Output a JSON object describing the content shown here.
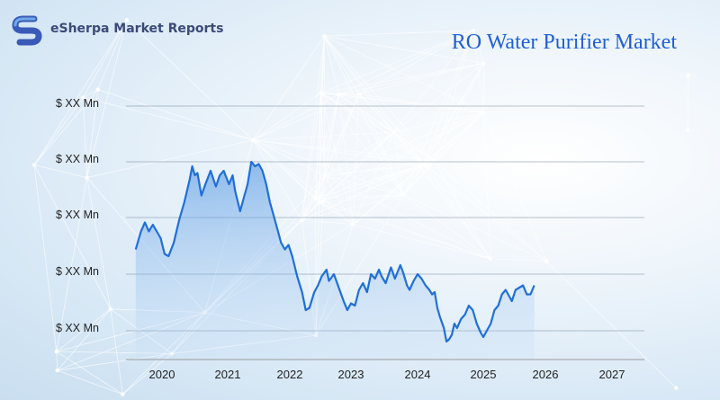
{
  "brand": {
    "name": "eSherpa Market Reports",
    "logo_icon": "esherpa-s-logo-icon",
    "logo_color": "#3a5ab9"
  },
  "chart_data": {
    "type": "area",
    "title": "RO Water Purifier Market",
    "xlabel": "",
    "ylabel": "",
    "y_tick_labels": [
      "$ XX Mn",
      "$ XX Mn",
      "$ XX Mn",
      "$ XX Mn",
      "$ XX Mn"
    ],
    "x_tick_labels": [
      "2020",
      "2021",
      "2022",
      "2023",
      "2024",
      "2025",
      "2026",
      "2027"
    ],
    "xlim": [
      2019.6,
      2027.5
    ],
    "ylim": [
      0,
      100
    ],
    "grid": true,
    "line_color": "#1f6fd9",
    "fill_color": "#4a90e2",
    "points": [
      [
        2019.6,
        47
      ],
      [
        2019.68,
        55
      ],
      [
        2019.74,
        59
      ],
      [
        2019.8,
        55
      ],
      [
        2019.86,
        58
      ],
      [
        2019.92,
        55
      ],
      [
        2019.98,
        52
      ],
      [
        2020.04,
        45
      ],
      [
        2020.1,
        44
      ],
      [
        2020.18,
        50
      ],
      [
        2020.26,
        60
      ],
      [
        2020.34,
        68
      ],
      [
        2020.42,
        78
      ],
      [
        2020.46,
        84
      ],
      [
        2020.5,
        80
      ],
      [
        2020.54,
        81
      ],
      [
        2020.6,
        71
      ],
      [
        2020.66,
        76
      ],
      [
        2020.74,
        82
      ],
      [
        2020.82,
        75
      ],
      [
        2020.88,
        80
      ],
      [
        2020.94,
        82
      ],
      [
        2021.02,
        76
      ],
      [
        2021.08,
        80
      ],
      [
        2021.12,
        73
      ],
      [
        2021.2,
        64
      ],
      [
        2021.26,
        70
      ],
      [
        2021.32,
        76
      ],
      [
        2021.38,
        86
      ],
      [
        2021.44,
        84
      ],
      [
        2021.5,
        85
      ],
      [
        2021.56,
        82
      ],
      [
        2021.62,
        76
      ],
      [
        2021.68,
        68
      ],
      [
        2021.74,
        62
      ],
      [
        2021.8,
        56
      ],
      [
        2021.86,
        50
      ],
      [
        2021.92,
        47
      ],
      [
        2021.98,
        49
      ],
      [
        2022.04,
        44
      ],
      [
        2022.12,
        35
      ],
      [
        2022.2,
        28
      ],
      [
        2022.26,
        20
      ],
      [
        2022.32,
        21
      ],
      [
        2022.4,
        28
      ],
      [
        2022.46,
        31
      ],
      [
        2022.52,
        35
      ],
      [
        2022.6,
        38
      ],
      [
        2022.64,
        33
      ],
      [
        2022.72,
        36
      ],
      [
        2022.8,
        30
      ],
      [
        2022.88,
        24
      ],
      [
        2022.94,
        20
      ],
      [
        2023.0,
        23
      ],
      [
        2023.06,
        22
      ],
      [
        2023.12,
        29
      ],
      [
        2023.18,
        32
      ],
      [
        2023.24,
        28
      ],
      [
        2023.3,
        36
      ],
      [
        2023.36,
        34
      ],
      [
        2023.42,
        38
      ],
      [
        2023.46,
        35
      ],
      [
        2023.52,
        32
      ],
      [
        2023.6,
        39
      ],
      [
        2023.66,
        34
      ],
      [
        2023.74,
        40
      ],
      [
        2023.78,
        37
      ],
      [
        2023.84,
        31
      ],
      [
        2023.88,
        29
      ],
      [
        2023.94,
        33
      ],
      [
        2024.0,
        36
      ],
      [
        2024.06,
        34
      ],
      [
        2024.12,
        31
      ],
      [
        2024.18,
        29
      ],
      [
        2024.22,
        27
      ],
      [
        2024.26,
        28
      ],
      [
        2024.3,
        21
      ],
      [
        2024.34,
        17
      ],
      [
        2024.4,
        12
      ],
      [
        2024.44,
        6
      ],
      [
        2024.48,
        7
      ],
      [
        2024.52,
        9
      ],
      [
        2024.56,
        14
      ],
      [
        2024.6,
        12
      ],
      [
        2024.66,
        16
      ],
      [
        2024.72,
        18
      ],
      [
        2024.78,
        22
      ],
      [
        2024.84,
        20
      ],
      [
        2024.9,
        14
      ],
      [
        2024.96,
        10
      ],
      [
        2025.0,
        8
      ],
      [
        2025.06,
        11
      ],
      [
        2025.12,
        14
      ],
      [
        2025.18,
        20
      ],
      [
        2025.24,
        22
      ],
      [
        2025.3,
        27
      ],
      [
        2025.36,
        29
      ],
      [
        2025.4,
        27
      ],
      [
        2025.46,
        24
      ],
      [
        2025.52,
        29
      ],
      [
        2025.58,
        30
      ],
      [
        2025.64,
        31
      ],
      [
        2025.7,
        27
      ],
      [
        2025.76,
        27
      ],
      [
        2025.82,
        31
      ]
    ]
  }
}
